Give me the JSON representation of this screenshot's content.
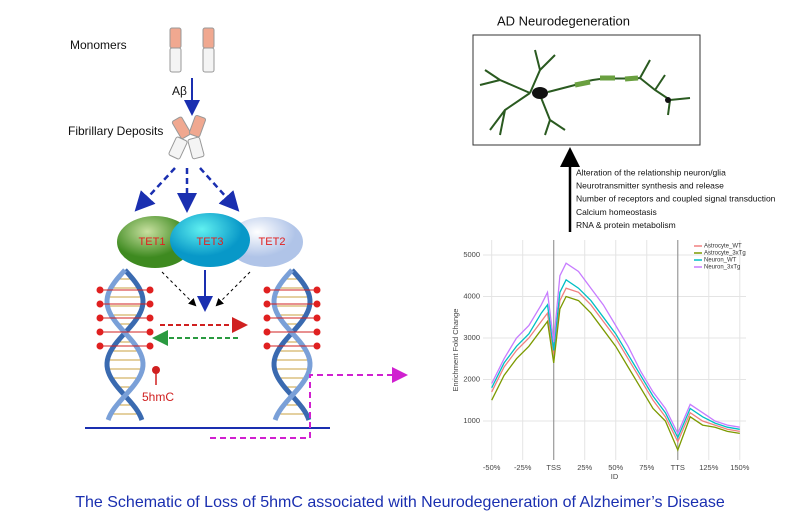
{
  "pathway": {
    "monomers": "Monomers",
    "abeta": "Aβ",
    "deposits": "Fibrillary Deposits",
    "enzymes": [
      "TET1",
      "TET3",
      "TET2"
    ],
    "mark": "5hmC"
  },
  "outcome": {
    "title": "AD Neurodegeneration",
    "effects": [
      "Alteration of the relationship neuron/glia",
      "Neurotransmitter synthesis and release",
      "Number of receptors and coupled signal transduction",
      "Calcium homeostasis",
      "RNA & protein metabolism"
    ]
  },
  "chart_data": {
    "type": "line",
    "xlabel": "ID",
    "ylabel": "Enrichment Fold Change",
    "x": [
      -50,
      -40,
      -30,
      -20,
      -10,
      -5,
      0,
      5,
      10,
      20,
      30,
      40,
      50,
      60,
      70,
      80,
      90,
      100,
      110,
      120,
      130,
      140,
      150
    ],
    "series": [
      {
        "name": "Astrocyte_WT",
        "color": "#f08080",
        "values": [
          1700,
          2300,
          2700,
          3000,
          3400,
          3600,
          2600,
          3900,
          4200,
          4100,
          3800,
          3400,
          3000,
          2500,
          2000,
          1500,
          1100,
          500,
          1200,
          1000,
          900,
          800,
          750
        ]
      },
      {
        "name": "Astrocyte_3xTg",
        "color": "#7c9a00",
        "values": [
          1500,
          2100,
          2500,
          2800,
          3200,
          3400,
          2400,
          3700,
          4000,
          3900,
          3600,
          3200,
          2800,
          2300,
          1800,
          1300,
          1000,
          300,
          1100,
          900,
          850,
          750,
          700
        ]
      },
      {
        "name": "Neuron_WT",
        "color": "#00bfc4",
        "values": [
          1800,
          2400,
          2800,
          3100,
          3600,
          3800,
          2700,
          4100,
          4400,
          4200,
          3900,
          3500,
          3100,
          2600,
          2100,
          1600,
          1200,
          600,
          1300,
          1100,
          950,
          850,
          800
        ]
      },
      {
        "name": "Neuron_3xTg",
        "color": "#c77cff",
        "values": [
          1900,
          2500,
          3000,
          3300,
          3800,
          4100,
          2900,
          4500,
          4800,
          4600,
          4200,
          3800,
          3300,
          2800,
          2200,
          1700,
          1300,
          700,
          1400,
          1200,
          1000,
          900,
          850
        ]
      }
    ],
    "xlim": [
      -57,
      155
    ],
    "ylim": [
      60,
      5360
    ],
    "xticks": [
      {
        "value": -50,
        "label": "-50%"
      },
      {
        "value": -25,
        "label": "-25%"
      },
      {
        "value": 0,
        "label": "TSS"
      },
      {
        "value": 25,
        "label": "25%"
      },
      {
        "value": 50,
        "label": "50%"
      },
      {
        "value": 75,
        "label": "75%"
      },
      {
        "value": 100,
        "label": "TTS"
      },
      {
        "value": 125,
        "label": "125%"
      },
      {
        "value": 150,
        "label": "150%"
      }
    ],
    "yticks": [
      1000,
      2000,
      3000,
      4000,
      5000
    ],
    "grid": true,
    "legend": "top-right"
  },
  "caption": "The Schematic of  Loss of 5hmC associated with Neurodegeneration of Alzheimer’s Disease"
}
